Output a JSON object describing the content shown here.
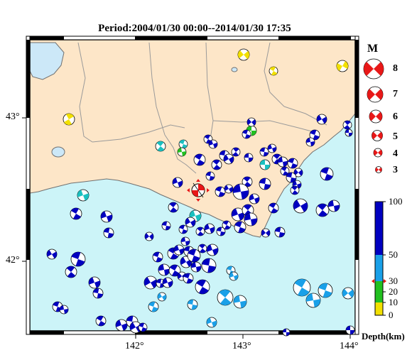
{
  "title": "Period:2004/01/30 00:00--2014/01/30 17:35",
  "axes": {
    "lat_labels": [
      "43°",
      "42°"
    ],
    "lon_labels": [
      "142°",
      "143°",
      "144°"
    ]
  },
  "magnitude_legend": {
    "title": "M",
    "items": [
      "8",
      "7",
      "6",
      "5",
      "4",
      "3"
    ]
  },
  "depth_legend": {
    "ticks": [
      "100",
      "50",
      "30",
      "20",
      "10",
      "0"
    ],
    "label": "Depth(km)",
    "colors": {
      "shallow_0_10": "#f2e000",
      "10_20": "#22c020",
      "20_30": "#1ac0c0",
      "30_50": "#1aa0e8",
      "50_100": "#0000c0"
    }
  },
  "colors": {
    "land": "#fde6c8",
    "sea": "#ccf4f8",
    "lake": "#cce8f8",
    "border": "#9a9a9a",
    "coast": "#707070",
    "highlight": "#e81818"
  }
}
